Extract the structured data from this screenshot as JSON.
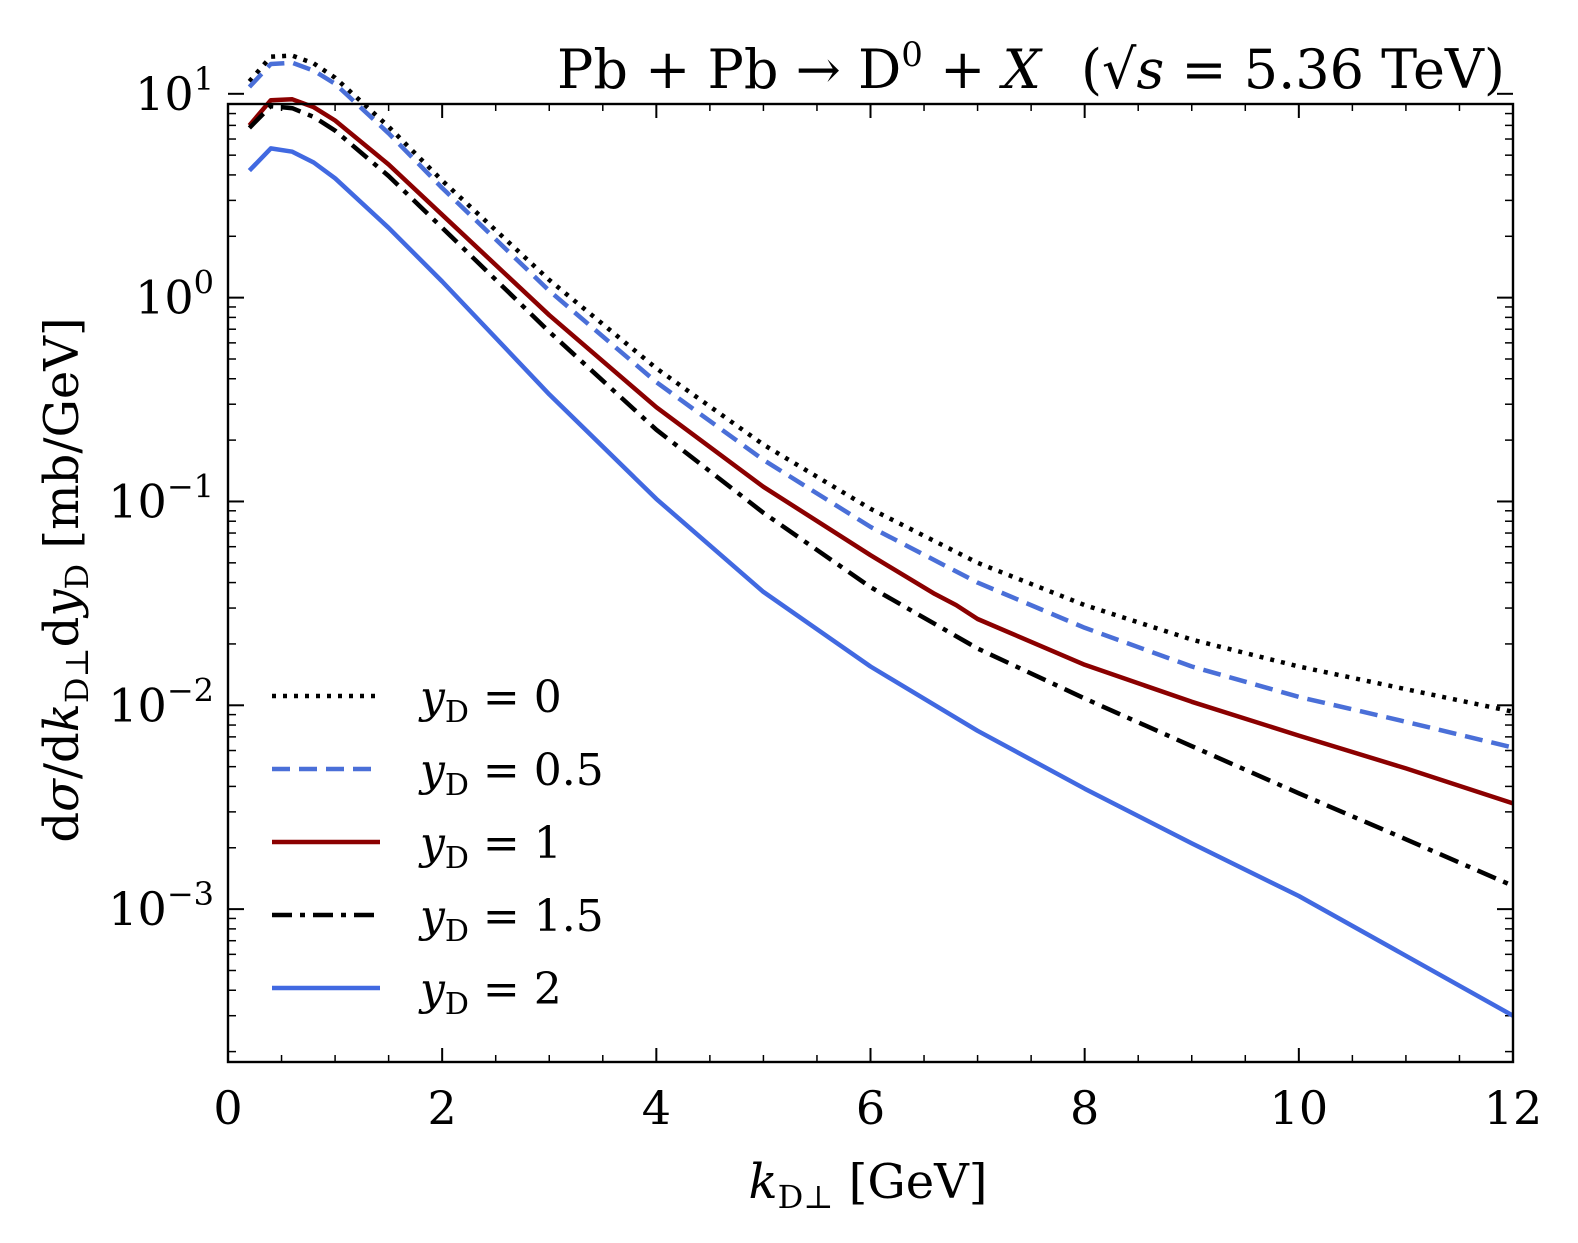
{
  "chart_data": {
    "type": "line",
    "title": {
      "prefix": "Pb + Pb → D",
      "sup": "0",
      "mid": " + ",
      "var": "X",
      "energy_open": "(√",
      "energy_var": "s",
      "energy_rest": " = 5.36 TeV)"
    },
    "xlabel": {
      "var": "k",
      "sub": "D⊥",
      "unit": " [GeV]"
    },
    "ylabel": {
      "p1": "d",
      "p2": "σ",
      "p3": "/d",
      "p4": "k",
      "p5": "D⊥",
      "p6": "d",
      "p7": "y",
      "p8": "D",
      "p9": " [mb/GeV]"
    },
    "xlim": [
      0,
      12
    ],
    "ylim_log10": [
      -3.75,
      0.95
    ],
    "yscale": "log",
    "x_ticks": [
      0,
      2,
      4,
      6,
      8,
      10,
      12
    ],
    "x_tick_labels": [
      "0",
      "2",
      "4",
      "6",
      "8",
      "10",
      "12"
    ],
    "y_ticks": [
      {
        "base": "10",
        "exp": "1",
        "value": 10
      },
      {
        "base": "10",
        "exp": "0",
        "value": 1
      },
      {
        "base": "10",
        "exp": "−1",
        "value": 0.1
      },
      {
        "base": "10",
        "exp": "−2",
        "value": 0.01
      },
      {
        "base": "10",
        "exp": "−3",
        "value": 0.001
      }
    ],
    "legend_position": "lower-left",
    "series": [
      {
        "name": "y_D = 0",
        "label_var": "y",
        "label_sub": "D",
        "label_rest": " = 0",
        "color": "#000000",
        "style": "dotted",
        "x": [
          0.2,
          0.4,
          0.6,
          0.8,
          1.0,
          1.5,
          2,
          3,
          4,
          5,
          6,
          7,
          8,
          9,
          10,
          11,
          12
        ],
        "y": [
          11.5,
          15.2,
          15.4,
          14.1,
          12.0,
          6.9,
          3.75,
          1.22,
          0.45,
          0.19,
          0.092,
          0.05,
          0.031,
          0.021,
          0.0155,
          0.012,
          0.0093
        ]
      },
      {
        "name": "y_D = 0.5",
        "label_var": "y",
        "label_sub": "D",
        "label_rest": " = 0.5",
        "color": "#4a6fd8",
        "style": "dashed",
        "x": [
          0.2,
          0.4,
          0.6,
          0.8,
          1.0,
          1.5,
          2,
          3,
          4,
          5,
          6,
          7,
          8,
          9,
          10,
          11,
          12
        ],
        "y": [
          10.8,
          14.0,
          14.2,
          13.0,
          11.2,
          6.4,
          3.45,
          1.08,
          0.385,
          0.16,
          0.075,
          0.04,
          0.024,
          0.0155,
          0.011,
          0.0083,
          0.0062
        ]
      },
      {
        "name": "y_D = 1",
        "label_var": "y",
        "label_sub": "D",
        "label_rest": " = 1",
        "color": "#8b0000",
        "style": "solid",
        "x": [
          0.2,
          0.4,
          0.6,
          0.8,
          1.0,
          1.5,
          2,
          3,
          4,
          5,
          6,
          6.6,
          6.8,
          7,
          8,
          9,
          10,
          11,
          12
        ],
        "y": [
          7.0,
          9.3,
          9.4,
          8.6,
          7.4,
          4.5,
          2.55,
          0.82,
          0.29,
          0.118,
          0.0545,
          0.0352,
          0.031,
          0.0265,
          0.0158,
          0.0104,
          0.0071,
          0.0049,
          0.0033
        ]
      },
      {
        "name": "y_D = 1.5",
        "label_var": "y",
        "label_sub": "D",
        "label_rest": " = 1.5",
        "color": "#000000",
        "style": "dashdot",
        "x": [
          0.2,
          0.4,
          0.6,
          0.8,
          1.0,
          1.5,
          2,
          3,
          4,
          5,
          6,
          7,
          8,
          9,
          10,
          11,
          12
        ],
        "y": [
          6.8,
          8.7,
          8.5,
          7.7,
          6.6,
          3.95,
          2.2,
          0.68,
          0.225,
          0.088,
          0.038,
          0.019,
          0.0108,
          0.0063,
          0.0037,
          0.0022,
          0.0013
        ]
      },
      {
        "name": "y_D = 2",
        "label_var": "y",
        "label_sub": "D",
        "label_rest": " = 2",
        "color": "#4169e1",
        "style": "solid",
        "x": [
          0.2,
          0.4,
          0.6,
          0.8,
          1.0,
          1.5,
          2,
          3,
          4,
          5,
          6,
          7,
          8,
          9,
          10,
          11,
          12
        ],
        "y": [
          4.2,
          5.4,
          5.2,
          4.6,
          3.85,
          2.2,
          1.2,
          0.335,
          0.103,
          0.036,
          0.0155,
          0.0075,
          0.0039,
          0.0021,
          0.00116,
          0.00059,
          0.0003
        ]
      }
    ]
  }
}
